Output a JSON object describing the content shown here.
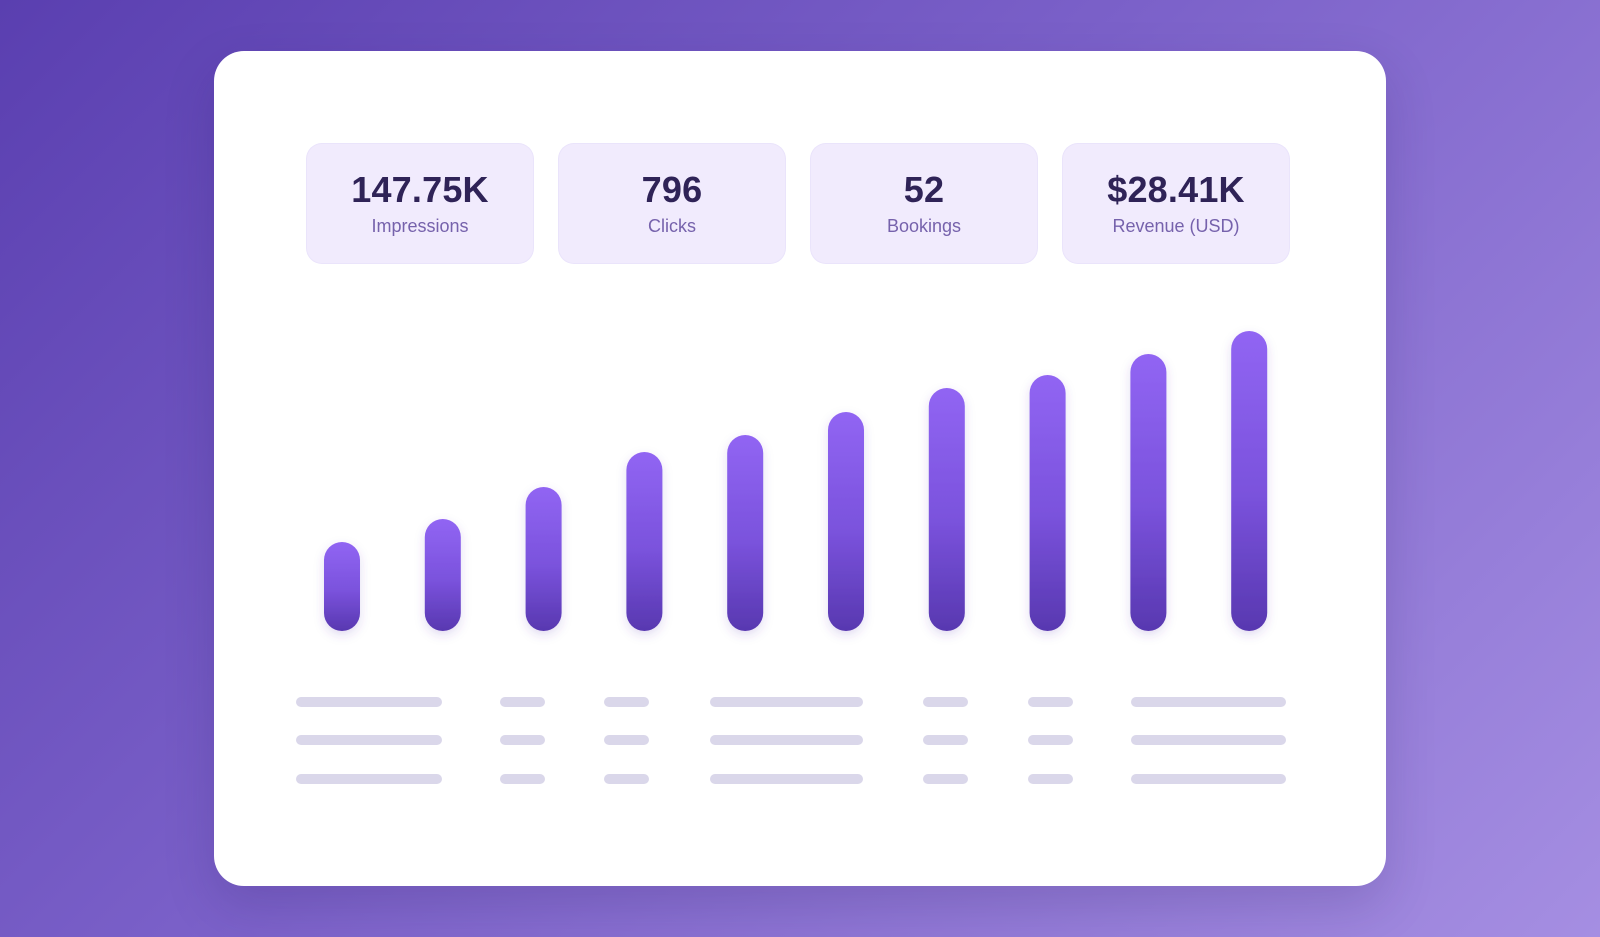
{
  "stats": [
    {
      "value": "147.75K",
      "label": "Impressions"
    },
    {
      "value": "796",
      "label": "Clicks"
    },
    {
      "value": "52",
      "label": "Bookings"
    },
    {
      "value": "$28.41K",
      "label": "Revenue (USD)"
    }
  ],
  "colors": {
    "background_start": "#5a3fb0",
    "background_end": "#a58ee2",
    "card": "#ffffff",
    "stat_tile": "#f1ebfd",
    "bar_top": "#9165f3",
    "bar_bottom": "#5838b0",
    "placeholder_line": "#dad7ea",
    "value_text": "#2f2357",
    "label_text": "#7662ac"
  },
  "chart_data": {
    "type": "bar",
    "categories": [
      "",
      "",
      "",
      "",
      "",
      "",
      "",
      "",
      "",
      ""
    ],
    "values": [
      89,
      112,
      144,
      179,
      196,
      219,
      243,
      256,
      277,
      300
    ],
    "ylim": [
      0,
      300
    ],
    "grid": false,
    "legend": "none"
  }
}
